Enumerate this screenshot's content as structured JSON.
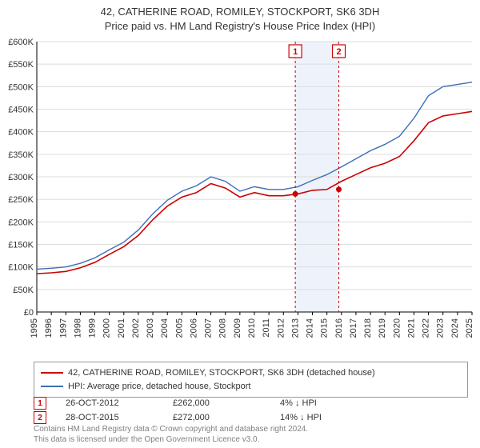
{
  "title": {
    "line1": "42, CATHERINE ROAD, ROMILEY, STOCKPORT, SK6 3DH",
    "line2": "Price paid vs. HM Land Registry's House Price Index (HPI)",
    "fontsize": 13,
    "color": "#333333"
  },
  "chart": {
    "type": "line",
    "background_color": "#ffffff",
    "grid_color": "#dcdcdc",
    "axis_color": "#000000",
    "axis_font_size": 11,
    "xlim": [
      1995,
      2025
    ],
    "xtick_step": 1,
    "xticks": [
      1995,
      1996,
      1997,
      1998,
      1999,
      2000,
      2001,
      2002,
      2003,
      2004,
      2005,
      2006,
      2007,
      2008,
      2009,
      2010,
      2011,
      2012,
      2013,
      2014,
      2015,
      2016,
      2017,
      2018,
      2019,
      2020,
      2021,
      2022,
      2023,
      2024,
      2025
    ],
    "ylim": [
      0,
      600000
    ],
    "ytick_step": 50000,
    "yticks": [
      0,
      50000,
      100000,
      150000,
      200000,
      250000,
      300000,
      350000,
      400000,
      450000,
      500000,
      550000,
      600000
    ],
    "ytick_labels": [
      "£0",
      "£50K",
      "£100K",
      "£150K",
      "£200K",
      "£250K",
      "£300K",
      "£350K",
      "£400K",
      "£450K",
      "£500K",
      "£550K",
      "£600K"
    ],
    "series": [
      {
        "name": "42, CATHERINE ROAD, ROMILEY, STOCKPORT, SK6 3DH (detached house)",
        "color": "#cc0000",
        "line_width": 1.6,
        "data": [
          [
            1995,
            85000
          ],
          [
            1996,
            87000
          ],
          [
            1997,
            90000
          ],
          [
            1998,
            98000
          ],
          [
            1999,
            110000
          ],
          [
            2000,
            128000
          ],
          [
            2001,
            145000
          ],
          [
            2002,
            170000
          ],
          [
            2003,
            205000
          ],
          [
            2004,
            235000
          ],
          [
            2005,
            255000
          ],
          [
            2006,
            265000
          ],
          [
            2007,
            285000
          ],
          [
            2008,
            275000
          ],
          [
            2009,
            255000
          ],
          [
            2010,
            265000
          ],
          [
            2011,
            258000
          ],
          [
            2012,
            258000
          ],
          [
            2013,
            262000
          ],
          [
            2014,
            270000
          ],
          [
            2015,
            272000
          ],
          [
            2016,
            290000
          ],
          [
            2017,
            305000
          ],
          [
            2018,
            320000
          ],
          [
            2019,
            330000
          ],
          [
            2020,
            345000
          ],
          [
            2021,
            380000
          ],
          [
            2022,
            420000
          ],
          [
            2023,
            435000
          ],
          [
            2024,
            440000
          ],
          [
            2025,
            445000
          ]
        ]
      },
      {
        "name": "HPI: Average price, detached house, Stockport",
        "color": "#3b6fb6",
        "line_width": 1.4,
        "data": [
          [
            1995,
            95000
          ],
          [
            1996,
            97000
          ],
          [
            1997,
            100000
          ],
          [
            1998,
            108000
          ],
          [
            1999,
            120000
          ],
          [
            2000,
            138000
          ],
          [
            2001,
            155000
          ],
          [
            2002,
            182000
          ],
          [
            2003,
            218000
          ],
          [
            2004,
            248000
          ],
          [
            2005,
            268000
          ],
          [
            2006,
            280000
          ],
          [
            2007,
            300000
          ],
          [
            2008,
            290000
          ],
          [
            2009,
            268000
          ],
          [
            2010,
            278000
          ],
          [
            2011,
            272000
          ],
          [
            2012,
            272000
          ],
          [
            2013,
            278000
          ],
          [
            2014,
            292000
          ],
          [
            2015,
            305000
          ],
          [
            2016,
            322000
          ],
          [
            2017,
            340000
          ],
          [
            2018,
            358000
          ],
          [
            2019,
            372000
          ],
          [
            2020,
            390000
          ],
          [
            2021,
            430000
          ],
          [
            2022,
            480000
          ],
          [
            2023,
            500000
          ],
          [
            2024,
            505000
          ],
          [
            2025,
            510000
          ]
        ]
      }
    ],
    "markers": [
      {
        "label": "1",
        "x": 2012.82,
        "y": 262000,
        "date": "26-OCT-2012",
        "price": "£262,000",
        "delta": "4% ↓ HPI"
      },
      {
        "label": "2",
        "x": 2015.82,
        "y": 272000,
        "date": "28-OCT-2015",
        "price": "£272,000",
        "delta": "14% ↓ HPI"
      }
    ],
    "marker_box_color": "#cc0000",
    "marker_dash_color": "#cc0000",
    "transaction_band_color": "#eef3fb"
  },
  "footer": {
    "line1": "Contains HM Land Registry data © Crown copyright and database right 2024.",
    "line2": "This data is licensed under the Open Government Licence v3.0."
  }
}
